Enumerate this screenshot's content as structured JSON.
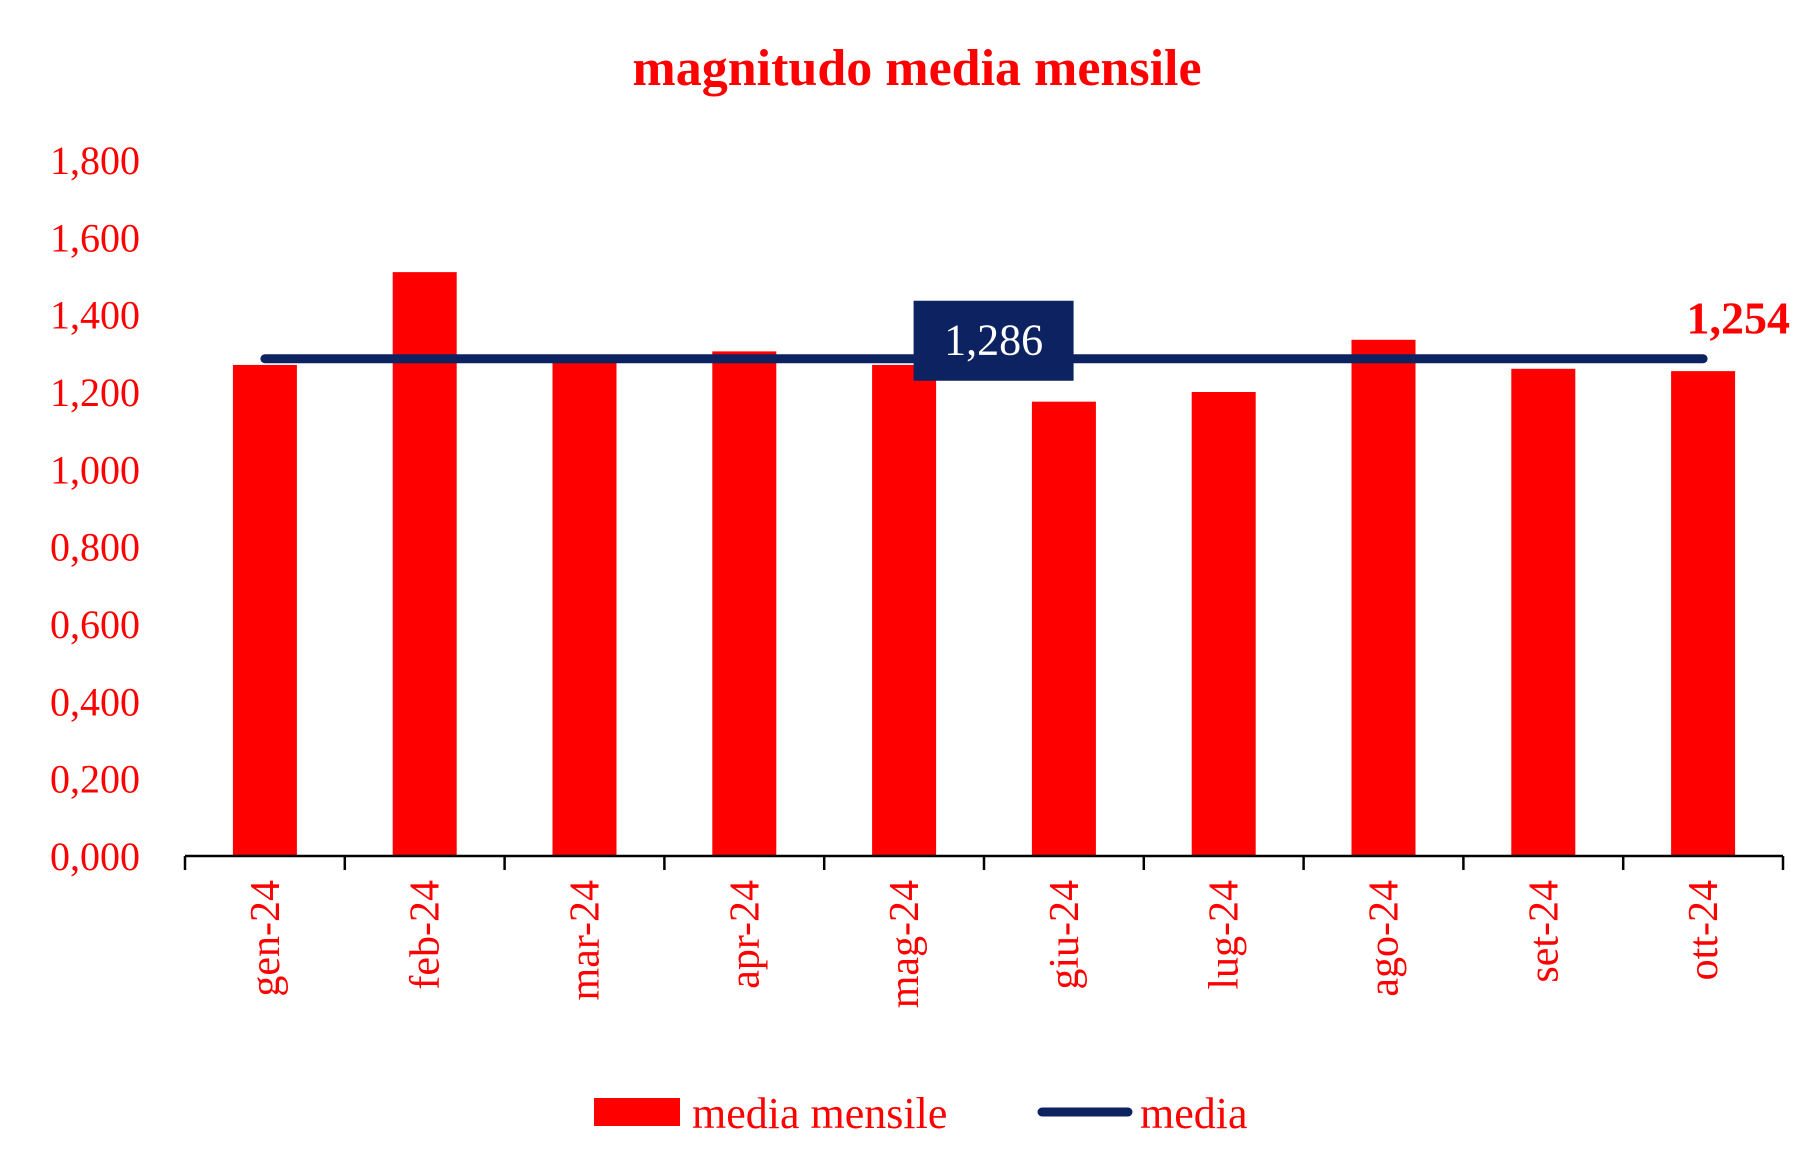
{
  "chart_data": {
    "type": "bar",
    "title": "magnitudo media mensile",
    "categories": [
      "gen-24",
      "feb-24",
      "mar-24",
      "apr-24",
      "mag-24",
      "giu-24",
      "lug-24",
      "ago-24",
      "set-24",
      "ott-24"
    ],
    "series": [
      {
        "name": "media mensile",
        "type": "bar",
        "values": [
          1.27,
          1.51,
          1.28,
          1.305,
          1.27,
          1.175,
          1.2,
          1.335,
          1.26,
          1.254
        ],
        "color": "#ff0000"
      },
      {
        "name": "media",
        "type": "line",
        "values": [
          1.286,
          1.286,
          1.286,
          1.286,
          1.286,
          1.286,
          1.286,
          1.286,
          1.286,
          1.286
        ],
        "color": "#0d2260"
      }
    ],
    "ylim": [
      0,
      1.8
    ],
    "yticks": [
      "0,000",
      "0,200",
      "0,400",
      "0,600",
      "0,800",
      "1,000",
      "1,200",
      "1,400",
      "1,600",
      "1,800"
    ],
    "ytick_values": [
      0,
      0.2,
      0.4,
      0.6,
      0.8,
      1.0,
      1.2,
      1.4,
      1.6,
      1.8
    ],
    "annotations": {
      "average_label": "1,286",
      "last_value_label": "1,254"
    },
    "legend": {
      "position": "bottom",
      "items": [
        "media mensile",
        "media"
      ]
    },
    "grid": false
  },
  "colors": {
    "text": "#ff0000",
    "bar": "#ff0000",
    "average_line": "#0d2260",
    "axis": "#000000"
  }
}
